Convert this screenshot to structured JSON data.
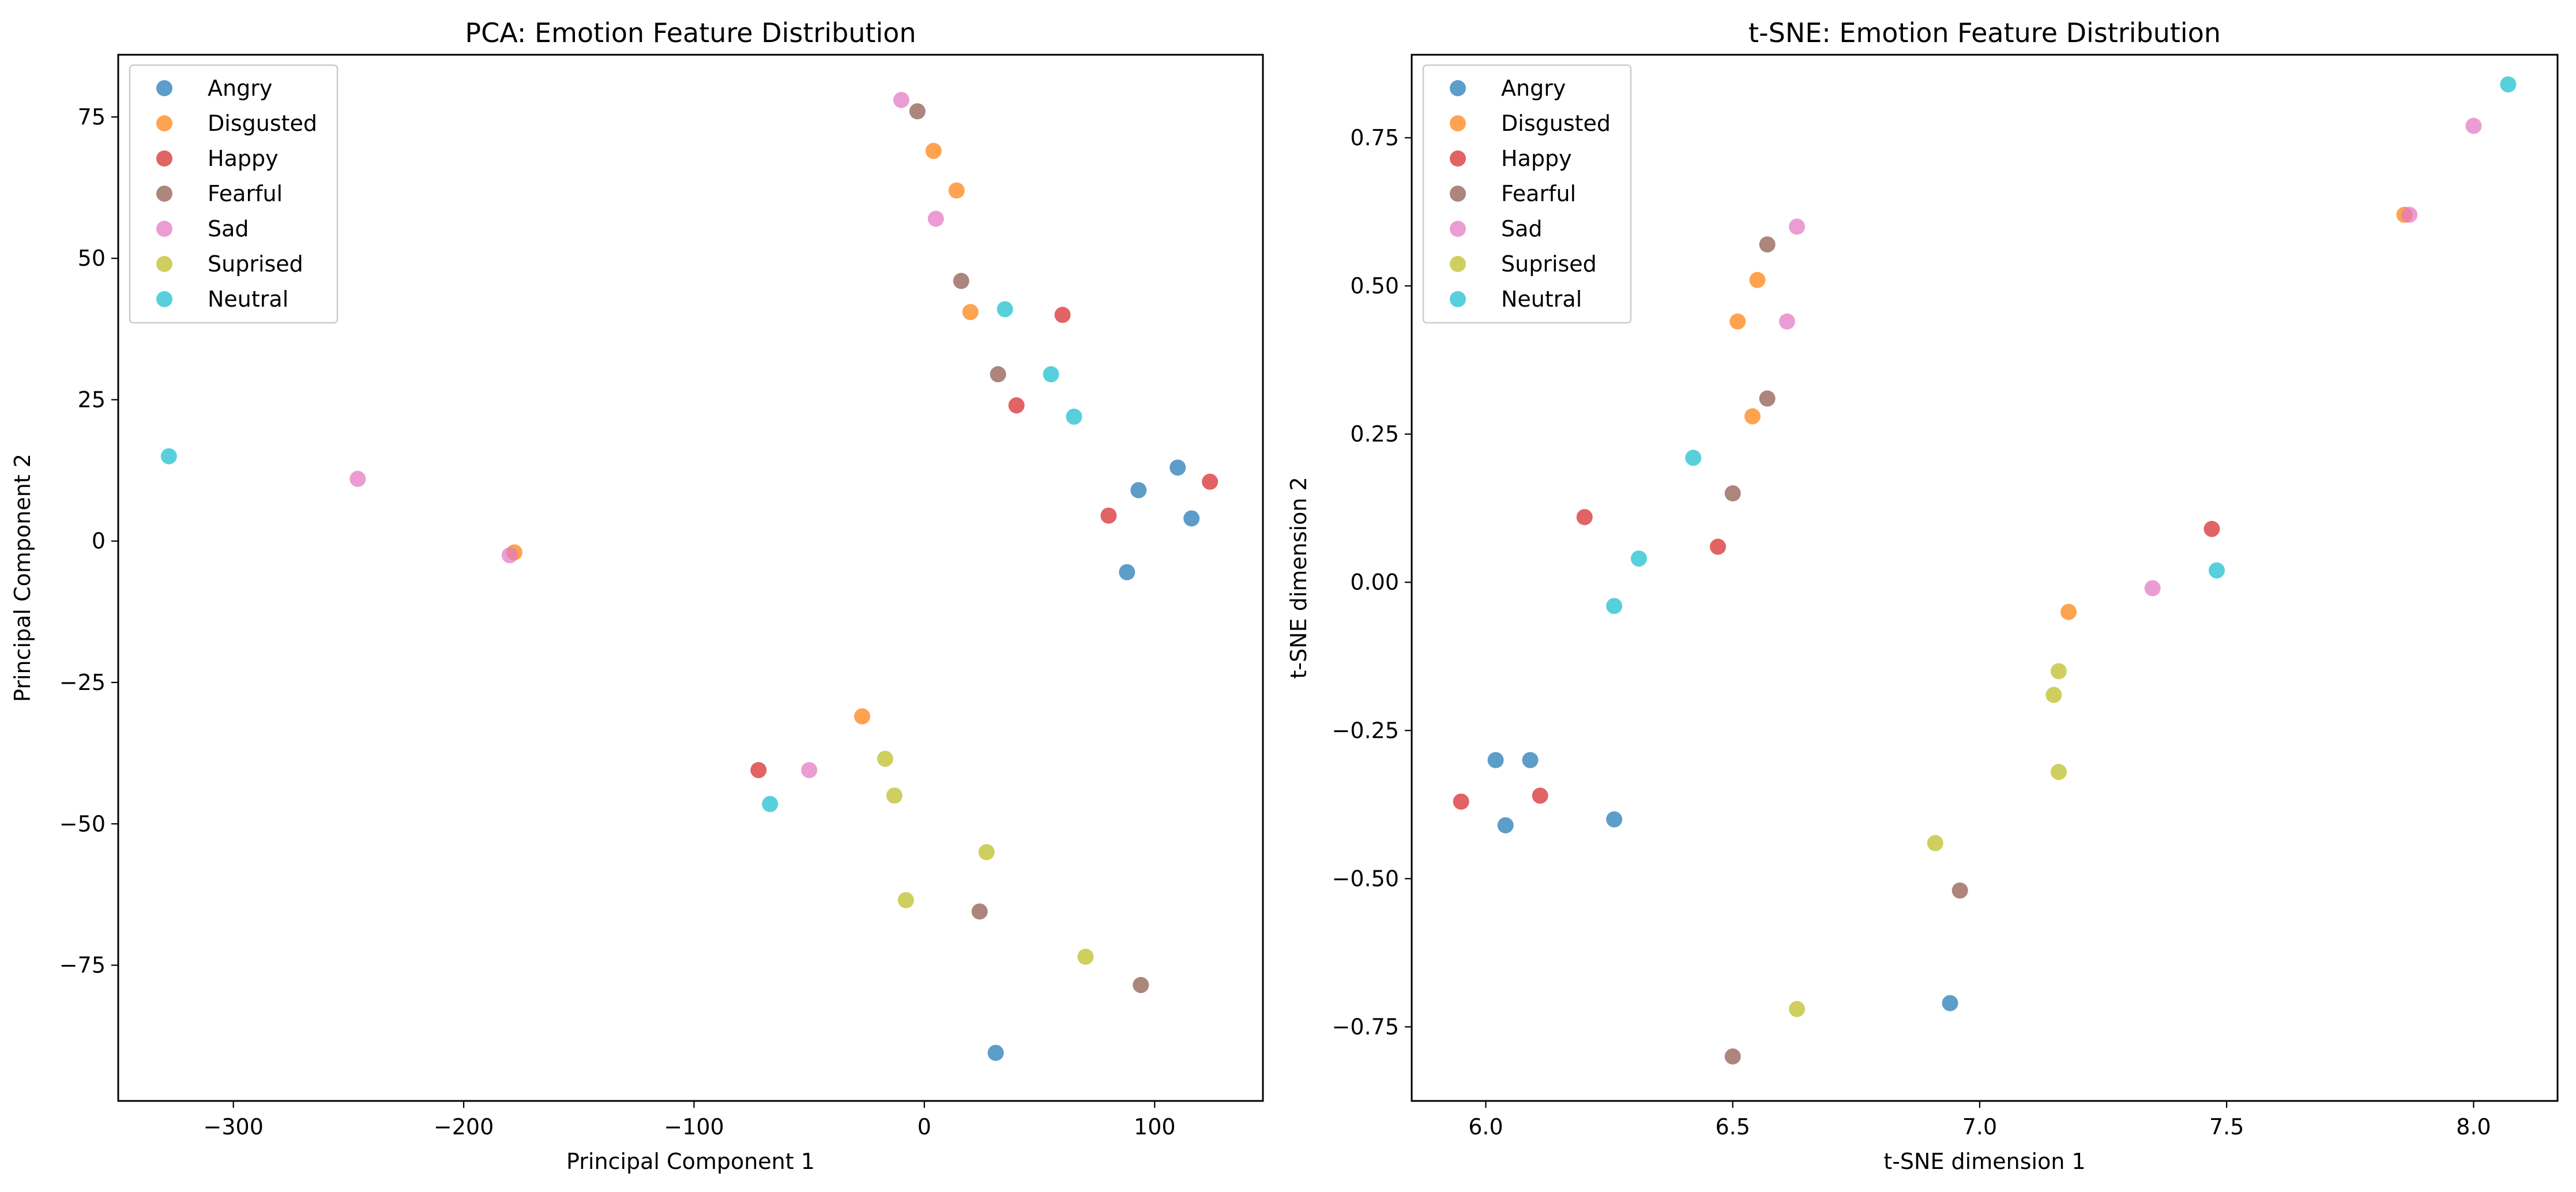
{
  "chart_data": [
    {
      "type": "scatter",
      "title": "PCA: Emotion Feature Distribution",
      "xlabel": "Principal Component 1",
      "ylabel": "Principal Component 2",
      "xlim": [
        -350,
        147
      ],
      "ylim": [
        -99,
        86
      ],
      "xticks": [
        -300,
        -200,
        -100,
        0,
        100
      ],
      "yticks": [
        -75,
        -50,
        -25,
        0,
        25,
        50,
        75
      ],
      "grid": false,
      "legend": "top-left",
      "series": [
        {
          "name": "Angry",
          "color": "#1f77b4",
          "points": [
            [
              93,
              9
            ],
            [
              110,
              13
            ],
            [
              116,
              4
            ],
            [
              88,
              -5.5
            ],
            [
              31,
              -90.5
            ]
          ]
        },
        {
          "name": "Disgusted",
          "color": "#ff7f0e",
          "points": [
            [
              4,
              69
            ],
            [
              14,
              62
            ],
            [
              20,
              40.5
            ],
            [
              -178,
              -2
            ],
            [
              -27,
              -31
            ]
          ]
        },
        {
          "name": "Happy",
          "color": "#d62728",
          "points": [
            [
              60,
              40
            ],
            [
              40,
              24
            ],
            [
              80,
              4.5
            ],
            [
              124,
              10.5
            ],
            [
              -72,
              -40.5
            ]
          ]
        },
        {
          "name": "Fearful",
          "color": "#8c564b",
          "points": [
            [
              -3,
              76
            ],
            [
              16,
              46
            ],
            [
              32,
              29.5
            ],
            [
              24,
              -65.5
            ],
            [
              94,
              -78.5
            ]
          ]
        },
        {
          "name": "Sad",
          "color": "#e377c2",
          "points": [
            [
              -10,
              78
            ],
            [
              5,
              57
            ],
            [
              -246,
              11
            ],
            [
              -180,
              -2.5
            ],
            [
              -50,
              -40.5
            ]
          ]
        },
        {
          "name": "Suprised",
          "color": "#bcbd22",
          "points": [
            [
              -17,
              -38.5
            ],
            [
              -13,
              -45
            ],
            [
              27,
              -55
            ],
            [
              -8,
              -63.5
            ],
            [
              70,
              -73.5
            ]
          ]
        },
        {
          "name": "Neutral",
          "color": "#17becf",
          "points": [
            [
              -328,
              15
            ],
            [
              35,
              41
            ],
            [
              55,
              29.5
            ],
            [
              65,
              22
            ],
            [
              -67,
              -46.5
            ]
          ]
        }
      ]
    },
    {
      "type": "scatter",
      "title": "t-SNE: Emotion Feature Distribution",
      "xlabel": "t-SNE dimension 1",
      "ylabel": "t-SNE dimension 2",
      "xlim": [
        5.85,
        8.17
      ],
      "ylim": [
        -0.875,
        0.89
      ],
      "xticks": [
        6.0,
        6.5,
        7.0,
        7.5,
        8.0
      ],
      "yticks": [
        -0.75,
        -0.5,
        -0.25,
        0.0,
        0.25,
        0.5,
        0.75
      ],
      "grid": false,
      "legend": "top-left",
      "series": [
        {
          "name": "Angry",
          "color": "#1f77b4",
          "points": [
            [
              6.02,
              -0.3
            ],
            [
              6.09,
              -0.3
            ],
            [
              6.04,
              -0.41
            ],
            [
              6.26,
              -0.4
            ],
            [
              6.94,
              -0.71
            ]
          ]
        },
        {
          "name": "Disgusted",
          "color": "#ff7f0e",
          "points": [
            [
              6.55,
              0.51
            ],
            [
              6.51,
              0.44
            ],
            [
              6.54,
              0.28
            ],
            [
              7.18,
              -0.05
            ],
            [
              7.86,
              0.62
            ]
          ]
        },
        {
          "name": "Happy",
          "color": "#d62728",
          "points": [
            [
              6.2,
              0.11
            ],
            [
              6.47,
              0.06
            ],
            [
              6.11,
              -0.36
            ],
            [
              5.95,
              -0.37
            ],
            [
              7.47,
              0.09
            ]
          ]
        },
        {
          "name": "Fearful",
          "color": "#8c564b",
          "points": [
            [
              6.57,
              0.57
            ],
            [
              6.57,
              0.31
            ],
            [
              6.5,
              0.15
            ],
            [
              6.96,
              -0.52
            ],
            [
              6.5,
              -0.8
            ]
          ]
        },
        {
          "name": "Sad",
          "color": "#e377c2",
          "points": [
            [
              6.63,
              0.6
            ],
            [
              6.61,
              0.44
            ],
            [
              7.35,
              -0.01
            ],
            [
              7.87,
              0.62
            ],
            [
              8.0,
              0.77
            ]
          ]
        },
        {
          "name": "Suprised",
          "color": "#bcbd22",
          "points": [
            [
              7.16,
              -0.15
            ],
            [
              7.15,
              -0.19
            ],
            [
              7.16,
              -0.32
            ],
            [
              6.91,
              -0.44
            ],
            [
              6.63,
              -0.72
            ]
          ]
        },
        {
          "name": "Neutral",
          "color": "#17becf",
          "points": [
            [
              6.42,
              0.21
            ],
            [
              6.31,
              0.04
            ],
            [
              6.26,
              -0.04
            ],
            [
              7.48,
              0.02
            ],
            [
              8.07,
              0.84
            ]
          ]
        }
      ]
    }
  ]
}
